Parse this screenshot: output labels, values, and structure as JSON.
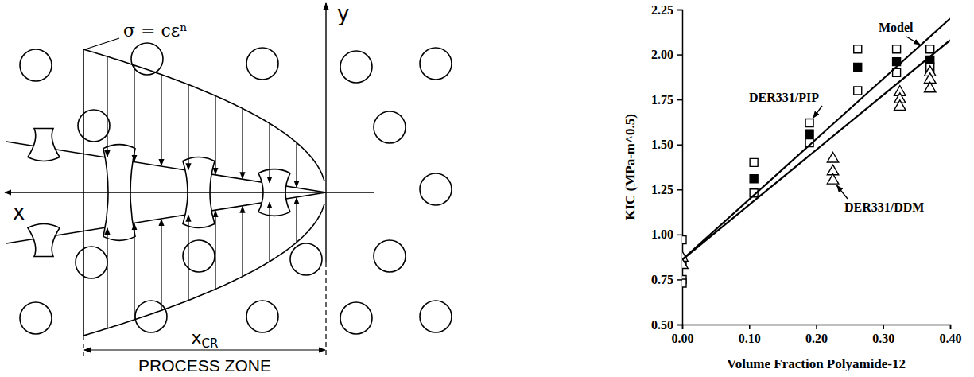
{
  "diagram": {
    "equation": "σ = cεⁿ",
    "x_axis_label": "x",
    "y_axis_label": "y",
    "critical_length": {
      "text": "x",
      "subscript": "CR"
    },
    "zone_label": "PROCESS ZONE"
  },
  "chart_data": {
    "type": "scatter",
    "x_label": "Volume Fraction Polyamide-12",
    "y_label": "KIC (MPa-m^0.5)",
    "xlim": [
      0,
      0.4
    ],
    "xticks": [
      {
        "value": 0,
        "label": "0.00"
      },
      {
        "value": 0.1,
        "label": "0.10"
      },
      {
        "value": 0.2,
        "label": "0.20"
      },
      {
        "value": 0.3,
        "label": "0.30"
      },
      {
        "value": 0.4,
        "label": "0.40"
      }
    ],
    "ylim": [
      0.5,
      2.25
    ],
    "yticks": [
      {
        "value": 0.5,
        "label": "0.50"
      },
      {
        "value": 0.75,
        "label": "0.75"
      },
      {
        "value": 1,
        "label": "1.00"
      },
      {
        "value": 1.25,
        "label": "1.25"
      },
      {
        "value": 1.5,
        "label": "1.50"
      },
      {
        "value": 1.75,
        "label": "1.75"
      },
      {
        "value": 2,
        "label": "2.00"
      },
      {
        "value": 2.25,
        "label": "2.25"
      }
    ],
    "grid": false,
    "series": [
      {
        "name": "DER331/PIP",
        "type": "scatter",
        "marker": "square-open",
        "color": "#000000",
        "x": [
          0,
          0,
          0,
          0.107,
          0.107,
          0.19,
          0.19,
          0.262,
          0.262,
          0.32,
          0.32,
          0.37,
          0.37
        ],
        "values": [
          0.97,
          0.75,
          0.73,
          1.4,
          1.23,
          1.62,
          1.51,
          2.03,
          1.8,
          2.03,
          1.9,
          2.03,
          1.93
        ]
      },
      {
        "type": "scatter",
        "marker": "square-filled",
        "color": "#000000",
        "x": [
          0,
          0.107,
          0.19,
          0.262,
          0.32,
          0.37
        ],
        "values": [
          0.85,
          1.31,
          1.56,
          1.93,
          1.96,
          1.97
        ]
      },
      {
        "name": "DER331/DDM",
        "type": "scatter",
        "marker": "triangle-open",
        "color": "#000000",
        "x": [
          0,
          0,
          0.225,
          0.225,
          0.225,
          0.325,
          0.325,
          0.325,
          0.37,
          0.37,
          0.37
        ],
        "values": [
          0.87,
          0.83,
          1.42,
          1.35,
          1.3,
          1.79,
          1.75,
          1.71,
          1.9,
          1.86,
          1.81
        ]
      },
      {
        "name": "Model",
        "type": "line",
        "line_style": "solid",
        "color": "#000000",
        "x": [
          0,
          0.4
        ],
        "values": [
          0.86,
          2.2
        ]
      },
      {
        "type": "line",
        "line_style": "solid",
        "color": "#000000",
        "x": [
          0,
          0.4
        ],
        "values": [
          0.86,
          2.08
        ]
      }
    ]
  }
}
